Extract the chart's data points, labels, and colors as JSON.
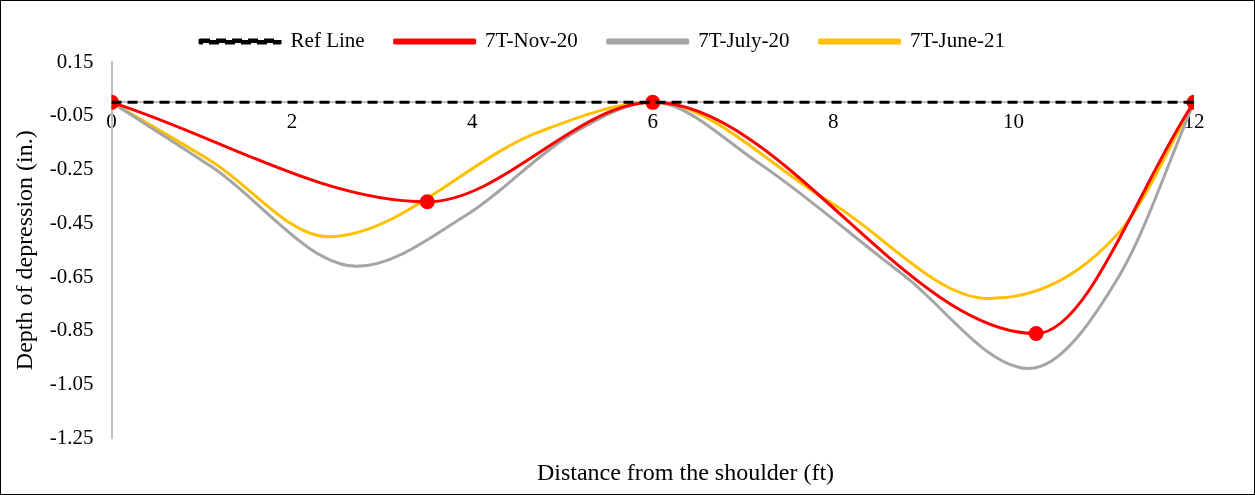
{
  "chart_data": {
    "type": "line",
    "xlabel": "Distance from the shoulder (ft)",
    "ylabel": "Depth of depression (in.)",
    "xlim": [
      0,
      12
    ],
    "xticks": [
      0,
      2,
      4,
      6,
      8,
      10,
      12
    ],
    "ylim": [
      -1.25,
      0.15
    ],
    "yticks": [
      0.15,
      -0.05,
      -0.25,
      -0.45,
      -0.65,
      -0.85,
      -1.05,
      -1.25
    ],
    "grid": false,
    "legend": "top",
    "series": [
      {
        "name": "Ref Line",
        "color": "#000000",
        "line_style": "dashed",
        "marker": "none",
        "x": [
          0,
          12
        ],
        "values": [
          0,
          0
        ]
      },
      {
        "name": "7T-Nov-20",
        "color": "#ff0000",
        "marker": "circle",
        "x": [
          0,
          3.5,
          6,
          10.25,
          12
        ],
        "values": [
          0,
          -0.37,
          0,
          -0.86,
          0
        ]
      },
      {
        "name": "7T-July-20",
        "color": "#a5a5a5",
        "marker": "none",
        "x": [
          0,
          1.11,
          2.72,
          3.93,
          5.14,
          6,
          7.15,
          8.77,
          10.17,
          11.18,
          12
        ],
        "values": [
          0,
          -0.24,
          -0.61,
          -0.42,
          -0.11,
          0,
          -0.22,
          -0.64,
          -0.99,
          -0.64,
          0
        ]
      },
      {
        "name": "7T-June-21",
        "color": "#ffc000",
        "marker": "none",
        "x": [
          0,
          1.11,
          2.4,
          4.74,
          6,
          7.96,
          9.73,
          11.18,
          12
        ],
        "values": [
          0,
          -0.22,
          -0.5,
          -0.11,
          0,
          -0.37,
          -0.73,
          -0.48,
          0
        ]
      }
    ]
  }
}
